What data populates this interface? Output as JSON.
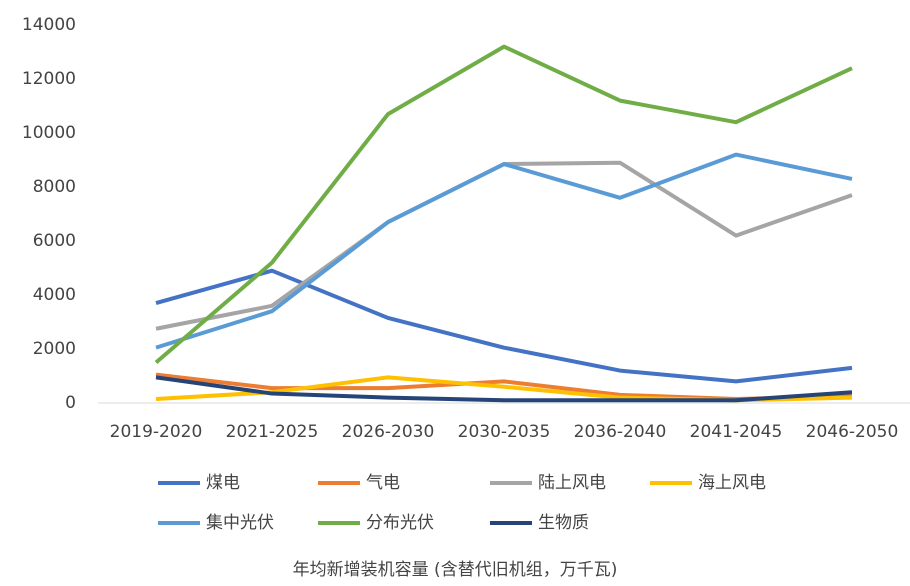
{
  "chart_data": {
    "type": "line",
    "x_label": "年均新增装机容量 (含替代旧机组，万千瓦)",
    "categories": [
      "2019-2020",
      "2021-2025",
      "2026-2030",
      "2030-2035",
      "2036-2040",
      "2041-2045",
      "2046-2050"
    ],
    "series": [
      {
        "name": "煤电",
        "color": "#4472c4",
        "values": [
          3700,
          4900,
          3150,
          2050,
          1200,
          800,
          1300
        ]
      },
      {
        "name": "气电",
        "color": "#ed7d31",
        "values": [
          1050,
          550,
          550,
          800,
          300,
          150,
          250
        ]
      },
      {
        "name": "陆上风电",
        "color": "#a5a5a5",
        "values": [
          2750,
          3600,
          6700,
          8850,
          8900,
          6200,
          7700
        ]
      },
      {
        "name": "海上风电",
        "color": "#ffc000",
        "values": [
          150,
          400,
          950,
          600,
          200,
          100,
          200
        ]
      },
      {
        "name": "集中光伏",
        "color": "#5b9bd5",
        "values": [
          2050,
          3400,
          6700,
          8850,
          7600,
          9200,
          8300
        ]
      },
      {
        "name": "分布光伏",
        "color": "#70ad47",
        "values": [
          1500,
          5200,
          10700,
          13200,
          11200,
          10400,
          12400
        ]
      },
      {
        "name": "生物质",
        "color": "#264478",
        "values": [
          950,
          350,
          200,
          100,
          100,
          100,
          400
        ]
      }
    ],
    "ylim": [
      0,
      14000
    ],
    "yticks": [
      0,
      2000,
      4000,
      6000,
      8000,
      10000,
      12000,
      14000
    ],
    "grid": false
  }
}
